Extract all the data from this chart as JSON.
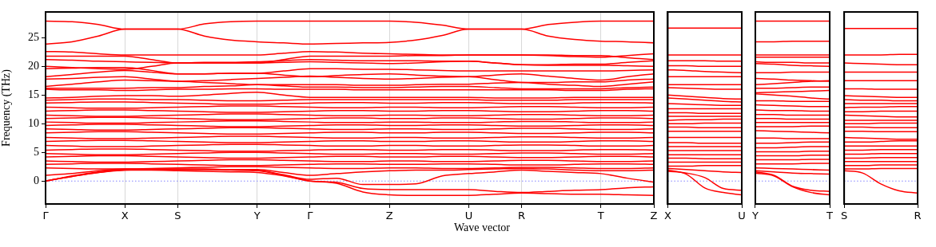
{
  "chart_data": [
    {
      "type": "line",
      "xlabel": "Wave vector",
      "ylabel": "Frequency (THz)",
      "ylim": [
        -4,
        29.5
      ],
      "categories": [
        "Γ",
        null,
        null,
        "X",
        null,
        "S",
        null,
        null,
        "Y",
        null,
        "Γ",
        null,
        null,
        "Z",
        null,
        null,
        "U",
        null,
        "R",
        null,
        null,
        "T",
        null,
        "Z"
      ],
      "yticks": [
        0,
        5,
        10,
        15,
        20,
        25
      ],
      "grid": "x",
      "marker": "none",
      "line_style": "solid",
      "ref_lines": [
        {
          "axis": "y",
          "value": 0,
          "color": "#8080ff",
          "line_style": "dotted"
        }
      ],
      "series": [
        {
          "color": "#ff0000",
          "values": [
            27.9,
            27.8,
            27.3,
            26.5,
            26.5,
            26.5,
            27.4,
            27.8,
            27.9,
            27.9,
            27.9,
            27.9,
            27.9,
            27.9,
            27.7,
            27.2,
            26.5,
            26.5,
            26.5,
            27.3,
            27.7,
            27.9,
            27.9,
            27.9
          ]
        },
        {
          "color": "#ff0000",
          "values": [
            23.9,
            24.3,
            25.3,
            26.5,
            26.5,
            26.5,
            25.3,
            24.6,
            24.3,
            24.1,
            23.9,
            24.0,
            24.1,
            24.2,
            24.6,
            25.4,
            26.5,
            26.5,
            26.5,
            25.3,
            24.7,
            24.4,
            24.3,
            24.1
          ]
        },
        {
          "color": "#ff0000",
          "values": [
            22.6,
            22.5,
            22.2,
            22.0,
            22.0,
            22.0,
            22.0,
            22.0,
            22.0,
            22.3,
            22.6,
            22.5,
            22.3,
            22.2,
            22.1,
            22.0,
            22.0,
            22.0,
            22.0,
            21.9,
            21.7,
            21.6,
            21.9,
            22.2
          ]
        },
        {
          "color": "#ff0000",
          "values": [
            21.8,
            21.8,
            21.8,
            21.8,
            21.2,
            20.6,
            20.6,
            20.6,
            20.6,
            21.2,
            21.8,
            21.8,
            21.8,
            21.8,
            21.9,
            21.9,
            22.0,
            22.0,
            22.0,
            22.0,
            21.9,
            21.9,
            21.5,
            21.2
          ]
        },
        {
          "color": "#ff0000",
          "values": [
            21.2,
            21.1,
            20.9,
            20.8,
            20.7,
            20.6,
            20.7,
            20.7,
            20.8,
            21.0,
            21.2,
            21.1,
            21.0,
            21.0,
            21.0,
            20.9,
            20.9,
            20.6,
            20.3,
            20.3,
            20.4,
            20.4,
            20.7,
            21.0
          ]
        },
        {
          "color": "#ff0000",
          "values": [
            20.0,
            19.8,
            19.6,
            19.5,
            20.0,
            20.6,
            20.6,
            20.6,
            20.6,
            20.7,
            20.8,
            20.7,
            20.6,
            20.5,
            20.6,
            20.8,
            20.9,
            20.6,
            20.3,
            20.2,
            20.2,
            20.2,
            20.1,
            20.0
          ]
        },
        {
          "color": "#ff0000",
          "values": [
            19.6,
            19.7,
            19.8,
            19.8,
            19.3,
            18.7,
            18.7,
            18.8,
            18.8,
            19.2,
            19.6,
            19.6,
            19.5,
            19.5,
            19.4,
            19.3,
            19.2,
            19.2,
            19.2,
            19.2,
            19.2,
            19.2,
            19.3,
            19.4
          ]
        },
        {
          "color": "#ff0000",
          "values": [
            18.2,
            18.6,
            19.0,
            19.3,
            19.0,
            18.7,
            18.7,
            18.8,
            18.8,
            18.5,
            18.2,
            18.4,
            18.6,
            18.7,
            18.5,
            18.3,
            18.2,
            18.5,
            18.7,
            18.3,
            17.9,
            17.6,
            18.2,
            18.7
          ]
        },
        {
          "color": "#ff0000",
          "values": [
            17.8,
            17.9,
            18.1,
            18.2,
            17.8,
            17.4,
            17.5,
            17.7,
            17.9,
            18.1,
            18.3,
            18.1,
            17.9,
            17.8,
            17.9,
            18.1,
            18.2,
            17.7,
            17.2,
            17.2,
            17.3,
            17.3,
            17.6,
            17.8
          ]
        },
        {
          "color": "#ff0000",
          "values": [
            16.5,
            16.9,
            17.3,
            17.6,
            17.5,
            17.4,
            17.2,
            17.0,
            16.8,
            16.8,
            16.8,
            16.8,
            16.7,
            16.7,
            16.8,
            16.9,
            16.9,
            17.1,
            17.2,
            16.9,
            16.7,
            16.5,
            16.9,
            17.3
          ]
        },
        {
          "color": "#ff0000",
          "values": [
            16.2,
            16.2,
            16.2,
            16.2,
            16.3,
            16.3,
            16.5,
            16.6,
            16.8,
            16.6,
            16.4,
            16.4,
            16.3,
            16.3,
            16.4,
            16.5,
            16.5,
            16.3,
            16.1,
            16.1,
            16.1,
            16.1,
            16.3,
            16.4
          ]
        },
        {
          "color": "#ff0000",
          "values": [
            16.0,
            15.9,
            15.9,
            15.8,
            15.9,
            16.0,
            16.0,
            16.1,
            16.1,
            16.0,
            16.0,
            16.0,
            15.9,
            15.9,
            15.9,
            15.9,
            15.9,
            15.9,
            15.9,
            15.9,
            15.8,
            15.8,
            16.0,
            16.1
          ]
        },
        {
          "color": "#ff0000",
          "values": [
            14.5,
            14.6,
            14.8,
            14.9,
            14.9,
            14.8,
            15.0,
            15.3,
            15.5,
            15.0,
            14.6,
            14.6,
            14.6,
            14.6,
            14.6,
            14.6,
            14.6,
            14.5,
            14.5,
            14.5,
            14.6,
            14.6,
            14.6,
            14.6
          ]
        },
        {
          "color": "#ff0000",
          "values": [
            14.1,
            14.2,
            14.3,
            14.3,
            14.2,
            14.2,
            14.1,
            14.0,
            14.0,
            14.1,
            14.2,
            14.2,
            14.2,
            14.2,
            14.2,
            14.2,
            14.2,
            14.1,
            14.1,
            14.1,
            14.2,
            14.2,
            14.2,
            14.2
          ]
        },
        {
          "color": "#ff0000",
          "values": [
            13.6,
            13.7,
            13.8,
            13.8,
            13.7,
            13.6,
            13.5,
            13.4,
            13.4,
            13.5,
            13.6,
            13.7,
            13.7,
            13.6,
            13.6,
            13.7,
            13.7,
            13.6,
            13.5,
            13.5,
            13.6,
            13.7,
            13.7,
            13.6
          ]
        },
        {
          "color": "#ff0000",
          "values": [
            12.9,
            12.8,
            12.7,
            12.7,
            12.8,
            12.9,
            13.0,
            13.1,
            13.1,
            13.0,
            12.9,
            12.8,
            12.8,
            12.9,
            12.9,
            12.8,
            12.8,
            12.9,
            13.0,
            13.0,
            12.9,
            12.8,
            12.8,
            12.9
          ]
        },
        {
          "color": "#ff0000",
          "values": [
            12.2,
            12.3,
            12.4,
            12.4,
            12.3,
            12.2,
            12.1,
            12.0,
            12.0,
            12.1,
            12.2,
            12.3,
            12.3,
            12.2,
            12.2,
            12.3,
            12.3,
            12.2,
            12.1,
            12.1,
            12.2,
            12.3,
            12.3,
            12.2
          ]
        },
        {
          "color": "#ff0000",
          "values": [
            11.5,
            11.4,
            11.3,
            11.3,
            11.4,
            11.5,
            11.6,
            11.7,
            11.7,
            11.6,
            11.5,
            11.4,
            11.4,
            11.5,
            11.5,
            11.4,
            11.4,
            11.5,
            11.6,
            11.6,
            11.5,
            11.4,
            11.4,
            11.5
          ]
        },
        {
          "color": "#ff0000",
          "values": [
            10.9,
            11.0,
            11.1,
            11.1,
            11.0,
            10.9,
            10.8,
            10.7,
            10.7,
            10.8,
            10.9,
            11.0,
            11.0,
            10.9,
            10.9,
            11.0,
            11.0,
            10.9,
            10.8,
            10.8,
            10.9,
            11.0,
            11.0,
            10.9
          ]
        },
        {
          "color": "#ff0000",
          "values": [
            10.3,
            10.2,
            10.1,
            10.1,
            10.2,
            10.3,
            10.4,
            10.5,
            10.5,
            10.4,
            10.3,
            10.2,
            10.2,
            10.3,
            10.3,
            10.2,
            10.2,
            10.3,
            10.4,
            10.4,
            10.3,
            10.2,
            10.2,
            10.3
          ]
        },
        {
          "color": "#ff0000",
          "values": [
            9.7,
            9.8,
            9.9,
            9.9,
            9.8,
            9.7,
            9.6,
            9.5,
            9.5,
            9.6,
            9.7,
            9.8,
            9.8,
            9.7,
            9.7,
            9.8,
            9.8,
            9.7,
            9.6,
            9.6,
            9.7,
            9.8,
            9.8,
            9.7
          ]
        },
        {
          "color": "#ff0000",
          "values": [
            9.1,
            9.0,
            8.9,
            8.9,
            9.0,
            9.1,
            9.2,
            9.3,
            9.3,
            9.2,
            9.1,
            9.0,
            9.0,
            9.1,
            9.1,
            9.0,
            9.0,
            9.1,
            9.2,
            9.2,
            9.1,
            9.0,
            9.0,
            9.1
          ]
        },
        {
          "color": "#ff0000",
          "values": [
            8.4,
            8.5,
            8.6,
            8.6,
            8.5,
            8.4,
            8.3,
            8.2,
            8.2,
            8.3,
            8.4,
            8.5,
            8.5,
            8.4,
            8.4,
            8.5,
            8.5,
            8.4,
            8.3,
            8.3,
            8.4,
            8.5,
            8.5,
            8.4
          ]
        },
        {
          "color": "#ff0000",
          "values": [
            7.6,
            7.5,
            7.4,
            7.4,
            7.5,
            7.6,
            7.7,
            7.8,
            7.8,
            7.7,
            7.6,
            7.5,
            7.5,
            7.6,
            7.6,
            7.5,
            7.5,
            7.6,
            7.7,
            7.7,
            7.6,
            7.5,
            7.5,
            7.6
          ]
        },
        {
          "color": "#ff0000",
          "values": [
            6.9,
            7.0,
            7.1,
            7.1,
            7.0,
            6.9,
            6.8,
            6.7,
            6.7,
            6.8,
            6.9,
            7.0,
            7.0,
            6.9,
            6.9,
            7.0,
            7.0,
            6.9,
            6.8,
            6.8,
            6.9,
            7.0,
            7.0,
            6.9
          ]
        },
        {
          "color": "#ff0000",
          "values": [
            6.2,
            6.1,
            6.0,
            6.0,
            6.1,
            6.2,
            6.3,
            6.4,
            6.4,
            6.3,
            6.2,
            6.1,
            6.1,
            6.2,
            6.2,
            6.1,
            6.1,
            6.2,
            6.3,
            6.3,
            6.2,
            6.1,
            6.1,
            6.2
          ]
        },
        {
          "color": "#ff0000",
          "values": [
            5.4,
            5.5,
            5.6,
            5.6,
            5.5,
            5.4,
            5.3,
            5.2,
            5.2,
            5.3,
            5.4,
            5.5,
            5.5,
            5.4,
            5.4,
            5.5,
            5.5,
            5.4,
            5.3,
            5.3,
            5.4,
            5.5,
            5.5,
            5.4
          ]
        },
        {
          "color": "#ff0000",
          "values": [
            4.8,
            4.7,
            4.6,
            4.6,
            4.7,
            4.8,
            4.9,
            5.0,
            5.0,
            4.9,
            4.8,
            4.7,
            4.7,
            4.8,
            4.8,
            4.7,
            4.7,
            4.8,
            4.9,
            4.9,
            4.8,
            4.7,
            4.7,
            4.8
          ]
        },
        {
          "color": "#ff0000",
          "values": [
            4.2,
            4.3,
            4.4,
            4.4,
            4.3,
            4.2,
            4.1,
            4.0,
            4.0,
            4.1,
            4.2,
            4.3,
            4.3,
            4.2,
            4.2,
            4.3,
            4.3,
            4.2,
            4.1,
            4.1,
            4.2,
            4.3,
            4.3,
            4.2
          ]
        },
        {
          "color": "#ff0000",
          "values": [
            3.5,
            3.4,
            3.3,
            3.3,
            3.4,
            3.5,
            3.6,
            3.7,
            3.7,
            3.6,
            3.5,
            3.4,
            3.4,
            3.5,
            3.5,
            3.4,
            3.4,
            3.5,
            3.6,
            3.6,
            3.5,
            3.4,
            3.4,
            3.5
          ]
        },
        {
          "color": "#ff0000",
          "values": [
            2.9,
            3.0,
            3.1,
            3.1,
            3.0,
            2.9,
            2.8,
            2.7,
            2.7,
            2.8,
            2.9,
            3.0,
            3.0,
            2.9,
            2.9,
            3.0,
            3.0,
            2.9,
            2.8,
            2.8,
            2.9,
            3.0,
            3.0,
            2.9
          ]
        },
        {
          "color": "#ff0000",
          "values": [
            2.3,
            2.2,
            2.1,
            2.1,
            2.2,
            2.3,
            2.4,
            2.5,
            2.5,
            2.4,
            2.3,
            2.2,
            2.2,
            2.3,
            2.3,
            2.2,
            2.2,
            2.3,
            2.4,
            2.4,
            2.3,
            2.2,
            2.2,
            2.3
          ]
        },
        {
          "color": "#ff0000",
          "values": [
            1.0,
            1.3,
            1.8,
            2.1,
            2.1,
            2.1,
            2.1,
            2.0,
            2.0,
            1.5,
            1.0,
            1.3,
            1.6,
            1.8,
            1.9,
            1.9,
            2.0,
            2.1,
            2.2,
            2.1,
            1.9,
            1.8,
            1.8,
            1.9
          ]
        },
        {
          "color": "#ff0000",
          "values": [
            0,
            0.8,
            1.5,
            1.9,
            1.9,
            1.8,
            1.7,
            1.6,
            1.5,
            0.9,
            0,
            -0.4,
            -1.9,
            -2.4,
            -2.5,
            -2.5,
            -2.5,
            -2.3,
            -2.1,
            -2.2,
            -2.3,
            -2.3,
            -2.4,
            -2.5
          ]
        },
        {
          "color": "#ff0000",
          "values": [
            0,
            0.8,
            1.5,
            1.9,
            2.0,
            2.0,
            2.0,
            1.9,
            1.8,
            1.0,
            0,
            -0.2,
            -1.3,
            -1.5,
            -1.5,
            -1.5,
            -1.5,
            -1.8,
            -2.0,
            -1.8,
            -1.6,
            -1.5,
            -1.2,
            -1.0
          ]
        },
        {
          "color": "#ff0000",
          "values": [
            0,
            0.9,
            1.6,
            2.0,
            2.0,
            2.0,
            2.0,
            2.0,
            1.9,
            1.1,
            0.3,
            0.5,
            -0.6,
            -0.6,
            -0.5,
            0.9,
            1.3,
            1.6,
            1.9,
            1.7,
            1.5,
            1.3,
            0.5,
            -0.2
          ]
        }
      ]
    },
    {
      "type": "line",
      "ylim": [
        -4,
        29.5
      ],
      "categories": [
        "X",
        null,
        null,
        null,
        "U"
      ],
      "tick_labels": "x",
      "marker": "none",
      "line_style": "solid",
      "ref_lines": [
        {
          "axis": "y",
          "value": 0,
          "color": "#8080ff",
          "line_style": "dotted"
        }
      ],
      "series": [
        {
          "color": "#ff0000",
          "values": [
            26.7,
            26.7,
            26.7,
            26.7,
            26.7
          ]
        },
        {
          "color": "#ff0000",
          "values": [
            22.0,
            22.0,
            22.0,
            22.0,
            22.0
          ]
        },
        {
          "color": "#ff0000",
          "values": [
            21.0,
            21.0,
            21.0,
            20.9,
            20.9
          ]
        },
        {
          "color": "#ff0000",
          "values": [
            20.1,
            20.1,
            20.0,
            20.0,
            20.0
          ]
        },
        {
          "color": "#ff0000",
          "values": [
            19.4,
            19.3,
            19.1,
            19.0,
            18.9
          ]
        },
        {
          "color": "#ff0000",
          "values": [
            18.2,
            18.2,
            18.2,
            18.2,
            18.2
          ]
        },
        {
          "color": "#ff0000",
          "values": [
            16.8,
            16.8,
            16.8,
            16.8,
            16.8
          ]
        },
        {
          "color": "#ff0000",
          "values": [
            16.3,
            16.2,
            16.1,
            16.0,
            16.0
          ]
        },
        {
          "color": "#ff0000",
          "values": [
            15.0,
            14.8,
            14.6,
            14.4,
            14.3
          ]
        },
        {
          "color": "#ff0000",
          "values": [
            14.5,
            14.3,
            14.1,
            13.9,
            13.8
          ]
        },
        {
          "color": "#ff0000",
          "values": [
            13.5,
            13.4,
            13.3,
            13.2,
            13.2
          ]
        },
        {
          "color": "#ff0000",
          "values": [
            12.6,
            12.6,
            12.6,
            12.6,
            12.6
          ]
        },
        {
          "color": "#ff0000",
          "values": [
            11.9,
            11.9,
            11.8,
            11.8,
            11.8
          ]
        },
        {
          "color": "#ff0000",
          "values": [
            11.3,
            11.3,
            11.3,
            11.3,
            11.3
          ]
        },
        {
          "color": "#ff0000",
          "values": [
            10.6,
            10.7,
            10.7,
            10.8,
            10.8
          ]
        },
        {
          "color": "#ff0000",
          "values": [
            10.0,
            10.0,
            10.1,
            10.1,
            10.1
          ]
        },
        {
          "color": "#ff0000",
          "values": [
            9.4,
            9.4,
            9.3,
            9.3,
            9.3
          ]
        },
        {
          "color": "#ff0000",
          "values": [
            8.7,
            8.7,
            8.7,
            8.7,
            8.7
          ]
        },
        {
          "color": "#ff0000",
          "values": [
            7.6,
            7.6,
            7.6,
            7.6,
            7.6
          ]
        },
        {
          "color": "#ff0000",
          "values": [
            6.7,
            6.7,
            6.6,
            6.6,
            6.6
          ]
        },
        {
          "color": "#ff0000",
          "values": [
            6.0,
            6.0,
            6.0,
            6.0,
            6.0
          ]
        },
        {
          "color": "#ff0000",
          "values": [
            5.3,
            5.3,
            5.3,
            5.3,
            5.3
          ]
        },
        {
          "color": "#ff0000",
          "values": [
            4.6,
            4.6,
            4.6,
            4.6,
            4.6
          ]
        },
        {
          "color": "#ff0000",
          "values": [
            4.0,
            4.0,
            3.9,
            3.9,
            3.9
          ]
        },
        {
          "color": "#ff0000",
          "values": [
            3.3,
            3.3,
            3.3,
            3.3,
            3.3
          ]
        },
        {
          "color": "#ff0000",
          "values": [
            2.6,
            2.6,
            2.7,
            2.7,
            2.7
          ]
        },
        {
          "color": "#ff0000",
          "values": [
            2.2,
            2.0,
            1.8,
            1.6,
            1.5
          ]
        },
        {
          "color": "#ff0000",
          "values": [
            1.9,
            1.2,
            -1.2,
            -2.0,
            -2.4
          ]
        },
        {
          "color": "#ff0000",
          "values": [
            1.7,
            1.4,
            0.6,
            -1.3,
            -1.6
          ]
        }
      ]
    },
    {
      "type": "line",
      "ylim": [
        -4,
        29.5
      ],
      "categories": [
        "Y",
        null,
        null,
        null,
        "T"
      ],
      "tick_labels": "x",
      "marker": "none",
      "line_style": "solid",
      "ref_lines": [
        {
          "axis": "y",
          "value": 0,
          "color": "#8080ff",
          "line_style": "dotted"
        }
      ],
      "series": [
        {
          "color": "#ff0000",
          "values": [
            27.9,
            27.9,
            27.9,
            27.9,
            27.9
          ]
        },
        {
          "color": "#ff0000",
          "values": [
            24.3,
            24.3,
            24.4,
            24.4,
            24.4
          ]
        },
        {
          "color": "#ff0000",
          "values": [
            22.0,
            22.0,
            22.0,
            22.0,
            22.0
          ]
        },
        {
          "color": "#ff0000",
          "values": [
            21.6,
            21.6,
            21.6,
            21.6,
            21.6
          ]
        },
        {
          "color": "#ff0000",
          "values": [
            20.8,
            20.7,
            20.7,
            20.6,
            20.6
          ]
        },
        {
          "color": "#ff0000",
          "values": [
            20.5,
            20.4,
            20.2,
            20.1,
            20.0
          ]
        },
        {
          "color": "#ff0000",
          "values": [
            18.9,
            18.9,
            19.0,
            19.0,
            19.0
          ]
        },
        {
          "color": "#ff0000",
          "values": [
            17.9,
            17.8,
            17.6,
            17.5,
            17.4
          ]
        },
        {
          "color": "#ff0000",
          "values": [
            16.8,
            17.0,
            17.2,
            17.4,
            17.5
          ]
        },
        {
          "color": "#ff0000",
          "values": [
            16.2,
            16.2,
            16.3,
            16.4,
            16.4
          ]
        },
        {
          "color": "#ff0000",
          "values": [
            15.4,
            15.5,
            15.6,
            15.7,
            15.8
          ]
        },
        {
          "color": "#ff0000",
          "values": [
            15.2,
            15.0,
            14.8,
            14.5,
            14.3
          ]
        },
        {
          "color": "#ff0000",
          "values": [
            14.0,
            14.0,
            13.9,
            13.9,
            13.9
          ]
        },
        {
          "color": "#ff0000",
          "values": [
            13.3,
            13.2,
            13.1,
            13.0,
            13.0
          ]
        },
        {
          "color": "#ff0000",
          "values": [
            12.4,
            12.3,
            12.3,
            12.2,
            12.2
          ]
        },
        {
          "color": "#ff0000",
          "values": [
            11.6,
            11.6,
            11.5,
            11.5,
            11.5
          ]
        },
        {
          "color": "#ff0000",
          "values": [
            10.9,
            10.9,
            10.8,
            10.8,
            10.8
          ]
        },
        {
          "color": "#ff0000",
          "values": [
            10.2,
            10.2,
            10.2,
            10.2,
            10.2
          ]
        },
        {
          "color": "#ff0000",
          "values": [
            9.5,
            9.5,
            9.5,
            9.6,
            9.6
          ]
        },
        {
          "color": "#ff0000",
          "values": [
            8.8,
            8.7,
            8.6,
            8.5,
            8.4
          ]
        },
        {
          "color": "#ff0000",
          "values": [
            7.5,
            7.5,
            7.4,
            7.4,
            7.4
          ]
        },
        {
          "color": "#ff0000",
          "values": [
            6.6,
            6.6,
            6.7,
            6.8,
            6.8
          ]
        },
        {
          "color": "#ff0000",
          "values": [
            5.8,
            5.8,
            5.9,
            6.0,
            6.0
          ]
        },
        {
          "color": "#ff0000",
          "values": [
            5.1,
            5.1,
            5.1,
            5.2,
            5.2
          ]
        },
        {
          "color": "#ff0000",
          "values": [
            4.4,
            4.4,
            4.4,
            4.5,
            4.5
          ]
        },
        {
          "color": "#ff0000",
          "values": [
            3.7,
            3.7,
            3.7,
            3.8,
            3.8
          ]
        },
        {
          "color": "#ff0000",
          "values": [
            3.0,
            3.0,
            3.0,
            3.1,
            3.1
          ]
        },
        {
          "color": "#ff0000",
          "values": [
            2.3,
            2.2,
            2.1,
            2.0,
            1.9
          ]
        },
        {
          "color": "#ff0000",
          "values": [
            1.8,
            1.6,
            1.4,
            1.3,
            1.2
          ]
        },
        {
          "color": "#ff0000",
          "values": [
            1.6,
            1.0,
            -0.9,
            -1.6,
            -1.8
          ]
        },
        {
          "color": "#ff0000",
          "values": [
            1.4,
            0.9,
            -1.0,
            -2.0,
            -2.4
          ]
        }
      ]
    },
    {
      "type": "line",
      "ylim": [
        -4,
        29.5
      ],
      "categories": [
        "S",
        null,
        null,
        null,
        "R"
      ],
      "tick_labels": "x",
      "marker": "none",
      "line_style": "solid",
      "ref_lines": [
        {
          "axis": "y",
          "value": 0,
          "color": "#8080ff",
          "line_style": "dotted"
        }
      ],
      "series": [
        {
          "color": "#ff0000",
          "values": [
            26.6,
            26.6,
            26.6,
            26.6,
            26.6
          ]
        },
        {
          "color": "#ff0000",
          "values": [
            22.0,
            22.0,
            22.0,
            22.1,
            22.1
          ]
        },
        {
          "color": "#ff0000",
          "values": [
            20.6,
            20.5,
            20.4,
            20.3,
            20.3
          ]
        },
        {
          "color": "#ff0000",
          "values": [
            19.0,
            19.0,
            19.0,
            19.0,
            19.0
          ]
        },
        {
          "color": "#ff0000",
          "values": [
            17.5,
            17.5,
            17.5,
            17.5,
            17.5
          ]
        },
        {
          "color": "#ff0000",
          "values": [
            16.1,
            16.1,
            16.0,
            16.0,
            16.0
          ]
        },
        {
          "color": "#ff0000",
          "values": [
            14.9,
            14.8,
            14.7,
            14.6,
            14.6
          ]
        },
        {
          "color": "#ff0000",
          "values": [
            14.2,
            14.1,
            14.1,
            14.0,
            14.0
          ]
        },
        {
          "color": "#ff0000",
          "values": [
            13.5,
            13.5,
            13.5,
            13.5,
            13.5
          ]
        },
        {
          "color": "#ff0000",
          "values": [
            12.8,
            12.9,
            12.9,
            13.0,
            13.0
          ]
        },
        {
          "color": "#ff0000",
          "values": [
            12.1,
            12.1,
            12.2,
            12.2,
            12.2
          ]
        },
        {
          "color": "#ff0000",
          "values": [
            11.5,
            11.4,
            11.3,
            11.2,
            11.2
          ]
        },
        {
          "color": "#ff0000",
          "values": [
            10.6,
            10.6,
            10.6,
            10.6,
            10.6
          ]
        },
        {
          "color": "#ff0000",
          "values": [
            10.0,
            10.0,
            10.1,
            10.1,
            10.1
          ]
        },
        {
          "color": "#ff0000",
          "values": [
            9.4,
            9.4,
            9.3,
            9.3,
            9.3
          ]
        },
        {
          "color": "#ff0000",
          "values": [
            8.7,
            8.7,
            8.6,
            8.6,
            8.6
          ]
        },
        {
          "color": "#ff0000",
          "values": [
            7.6,
            7.5,
            7.4,
            7.3,
            7.3
          ]
        },
        {
          "color": "#ff0000",
          "values": [
            6.8,
            6.8,
            6.9,
            7.0,
            7.0
          ]
        },
        {
          "color": "#ff0000",
          "values": [
            6.1,
            6.1,
            6.1,
            6.1,
            6.1
          ]
        },
        {
          "color": "#ff0000",
          "values": [
            5.4,
            5.4,
            5.5,
            5.5,
            5.5
          ]
        },
        {
          "color": "#ff0000",
          "values": [
            4.7,
            4.7,
            4.8,
            4.8,
            4.8
          ]
        },
        {
          "color": "#ff0000",
          "values": [
            4.0,
            4.0,
            4.1,
            4.1,
            4.1
          ]
        },
        {
          "color": "#ff0000",
          "values": [
            3.4,
            3.4,
            3.4,
            3.4,
            3.4
          ]
        },
        {
          "color": "#ff0000",
          "values": [
            2.7,
            2.7,
            2.8,
            2.8,
            2.8
          ]
        },
        {
          "color": "#ff0000",
          "values": [
            2.1,
            2.1,
            2.2,
            2.2,
            2.2
          ]
        },
        {
          "color": "#ff0000",
          "values": [
            1.8,
            1.4,
            -0.5,
            -1.7,
            -2.1
          ]
        }
      ]
    }
  ]
}
